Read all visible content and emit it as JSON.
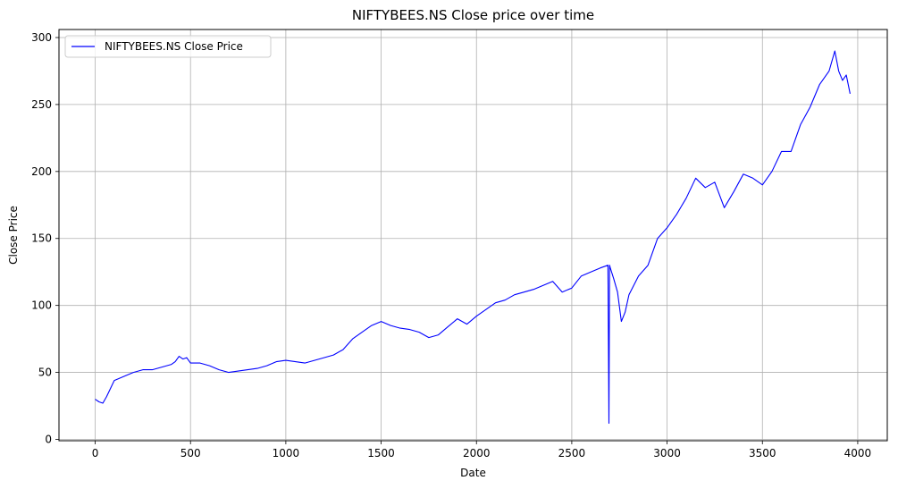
{
  "chart_data": {
    "type": "line",
    "title": "NIFTYBEES.NS Close price over time",
    "xlabel": "Date",
    "ylabel": "Close Price",
    "xlim": [
      -190,
      4155
    ],
    "ylim": [
      -1,
      306
    ],
    "xticks": [
      0,
      500,
      1000,
      1500,
      2000,
      2500,
      3000,
      3500,
      4000
    ],
    "yticks": [
      0,
      50,
      100,
      150,
      200,
      250,
      300
    ],
    "grid": true,
    "legend": "top-left",
    "series": [
      {
        "name": "NIFTYBEES.NS Close Price",
        "color": "#0000ff",
        "x": [
          0,
          20,
          40,
          60,
          80,
          100,
          150,
          200,
          250,
          300,
          350,
          400,
          420,
          440,
          460,
          480,
          500,
          550,
          600,
          650,
          700,
          750,
          800,
          850,
          900,
          950,
          1000,
          1050,
          1100,
          1150,
          1200,
          1250,
          1300,
          1350,
          1400,
          1450,
          1500,
          1550,
          1600,
          1650,
          1700,
          1750,
          1800,
          1850,
          1900,
          1950,
          2000,
          2050,
          2100,
          2150,
          2200,
          2250,
          2300,
          2350,
          2400,
          2450,
          2500,
          2550,
          2600,
          2650,
          2690,
          2695,
          2698,
          2702,
          2720,
          2740,
          2760,
          2780,
          2800,
          2850,
          2900,
          2950,
          3000,
          3050,
          3100,
          3150,
          3200,
          3250,
          3300,
          3350,
          3400,
          3450,
          3500,
          3550,
          3600,
          3650,
          3700,
          3750,
          3800,
          3850,
          3880,
          3900,
          3920,
          3940,
          3960
        ],
        "y": [
          30,
          28,
          27,
          32,
          38,
          44,
          47,
          50,
          52,
          52,
          54,
          56,
          58,
          62,
          60,
          61,
          57,
          57,
          55,
          52,
          50,
          51,
          52,
          53,
          55,
          58,
          59,
          58,
          57,
          59,
          61,
          63,
          67,
          75,
          80,
          85,
          88,
          85,
          83,
          82,
          80,
          76,
          78,
          84,
          90,
          86,
          92,
          97,
          102,
          104,
          108,
          110,
          112,
          115,
          118,
          110,
          113,
          122,
          125,
          128,
          130,
          12,
          130,
          128,
          120,
          110,
          88,
          95,
          108,
          122,
          130,
          150,
          158,
          168,
          180,
          195,
          188,
          192,
          173,
          185,
          198,
          195,
          190,
          200,
          215,
          215,
          235,
          248,
          265,
          275,
          290,
          275,
          268,
          272,
          258
        ]
      }
    ]
  }
}
